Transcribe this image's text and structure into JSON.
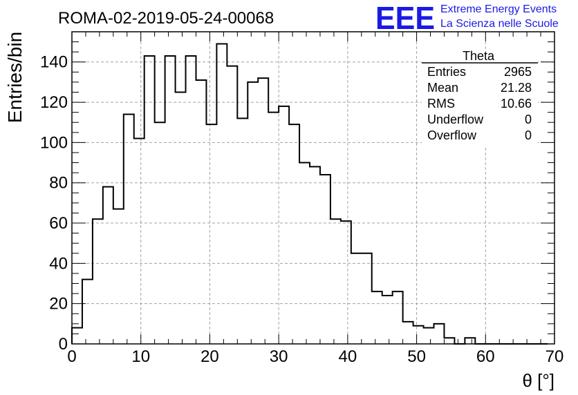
{
  "header": {
    "run_title": "ROMA-02-2019-05-24-00068",
    "logo_text": "EEE",
    "logo_line1": "Extreme Energy Events",
    "logo_line2": "La Scienza nelle Scuole"
  },
  "stats": {
    "title": "Theta",
    "rows": [
      {
        "label": "Entries",
        "value": "2965"
      },
      {
        "label": "Mean",
        "value": "21.28"
      },
      {
        "label": "RMS",
        "value": "10.66"
      },
      {
        "label": "Underflow",
        "value": "0"
      },
      {
        "label": "Overflow",
        "value": "0"
      }
    ]
  },
  "colors": {
    "brand": "#1a1ae6",
    "grid": "#a0a0a0",
    "line": "#000000"
  },
  "chart_data": {
    "type": "bar",
    "style": "step-histogram",
    "title": "",
    "xlabel": "θ [°]",
    "ylabel": "Entries/bin",
    "xlim": [
      0,
      70
    ],
    "ylim": [
      0,
      155
    ],
    "grid": true,
    "bin_width": 1.5,
    "bin_start": 0,
    "x_ticks": [
      0,
      10,
      20,
      30,
      40,
      50,
      60,
      70
    ],
    "y_ticks": [
      0,
      20,
      40,
      60,
      80,
      100,
      120,
      140
    ],
    "values": [
      8,
      32,
      62,
      78,
      67,
      114,
      102,
      143,
      110,
      143,
      125,
      143,
      131,
      109,
      149,
      138,
      112,
      130,
      132,
      115,
      118,
      109,
      90,
      88,
      84,
      62,
      61,
      45,
      45,
      26,
      24,
      26,
      11,
      9,
      8,
      10,
      3,
      0,
      3,
      0,
      0,
      0,
      0,
      0,
      0,
      0
    ]
  }
}
